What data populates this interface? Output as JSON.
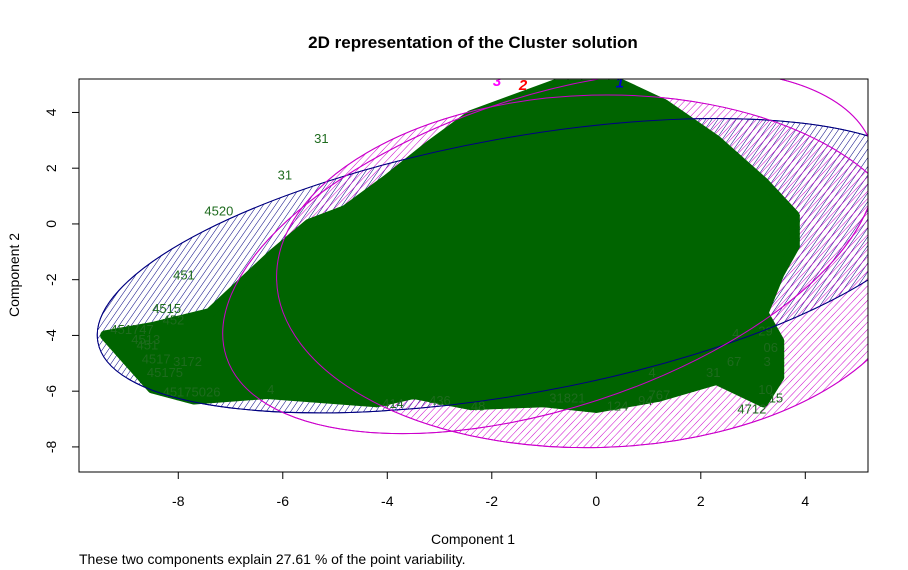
{
  "chart_data": {
    "type": "scatter",
    "title": "2D representation of the Cluster solution",
    "xlabel": "Component 1",
    "ylabel": "Component 2",
    "xlim": [
      -9.9,
      5.2
    ],
    "ylim": [
      -8.9,
      5.2
    ],
    "xticks": [
      -8,
      -6,
      -4,
      -2,
      0,
      2,
      4
    ],
    "yticks": [
      4,
      2,
      0,
      -2,
      -4,
      -6,
      -8
    ],
    "grid": false,
    "caption": "These two components explain 27.61 % of the point variability.",
    "colors": {
      "cluster_1": "#0000cc",
      "cluster_2": "#ff0000",
      "cluster_3": "#ff00ff",
      "points": "#006400",
      "point_labels": "#1e6b1e",
      "ellipse_1": "#000080",
      "ellipse_3": "#cc00cc"
    },
    "clusters": [
      {
        "label": "1",
        "center": [
          0.45,
          4.9
        ],
        "color": "#0000cc",
        "ellipse": {
          "cx": -1.5,
          "cy": -1.5,
          "rx": 8.17,
          "ry": 4.59,
          "angle_deg": 10.3
        }
      },
      {
        "label": "2",
        "center": [
          -1.4,
          4.8
        ],
        "color": "#ff0000",
        "ellipse": {
          "cx": -0.9,
          "cy": -1.0,
          "rx": 6.5,
          "ry": 5.6,
          "angle_deg": 18
        }
      },
      {
        "label": "3",
        "center": [
          -1.9,
          4.95
        ],
        "color": "#ff00ff",
        "ellipse": {
          "cx": 0.0,
          "cy": -1.7,
          "rx": 6.12,
          "ry": 6.32,
          "angle_deg": 1.5
        }
      }
    ],
    "point_cloud_outline": [
      [
        -0.8,
        5.0
      ],
      [
        0.5,
        5.0
      ],
      [
        1.3,
        4.3
      ],
      [
        2.3,
        3.0
      ],
      [
        3.2,
        1.5
      ],
      [
        3.8,
        0.3
      ],
      [
        3.8,
        -0.8
      ],
      [
        3.5,
        -1.8
      ],
      [
        3.2,
        -3.2
      ],
      [
        3.5,
        -4.2
      ],
      [
        3.5,
        -5.5
      ],
      [
        3.2,
        -6.4
      ],
      [
        2.3,
        -5.6
      ],
      [
        1.2,
        -6.2
      ],
      [
        0.0,
        -6.6
      ],
      [
        -1.0,
        -6.4
      ],
      [
        -2.4,
        -6.5
      ],
      [
        -3.5,
        -6.1
      ],
      [
        -4.2,
        -6.4
      ],
      [
        -6.3,
        -6.1
      ],
      [
        -7.7,
        -6.3
      ],
      [
        -8.5,
        -5.9
      ],
      [
        -9.4,
        -4.0
      ],
      [
        -8.5,
        -3.7
      ],
      [
        -7.4,
        -3.2
      ],
      [
        -6.2,
        -1.1
      ],
      [
        -5.5,
        0.0
      ],
      [
        -4.8,
        0.5
      ],
      [
        -4.0,
        1.6
      ],
      [
        -3.2,
        2.8
      ],
      [
        -2.4,
        3.9
      ]
    ],
    "point_labels": [
      {
        "x": -9.3,
        "y": -3.95,
        "text": "451747"
      },
      {
        "x": -8.8,
        "y": -4.5,
        "text": "451"
      },
      {
        "x": -8.7,
        "y": -5.0,
        "text": "4517"
      },
      {
        "x": -8.6,
        "y": -5.5,
        "text": "45175"
      },
      {
        "x": -8.9,
        "y": -4.3,
        "text": "4513"
      },
      {
        "x": -8.3,
        "y": -6.2,
        "text": "45175026"
      },
      {
        "x": -8.1,
        "y": -5.1,
        "text": "3172"
      },
      {
        "x": -8.5,
        "y": -3.2,
        "text": "4515"
      },
      {
        "x": -8.3,
        "y": -3.6,
        "text": "452"
      },
      {
        "x": -8.1,
        "y": -2.0,
        "text": "451"
      },
      {
        "x": -7.5,
        "y": 0.3,
        "text": "4520"
      },
      {
        "x": -6.1,
        "y": 1.6,
        "text": "31"
      },
      {
        "x": -5.4,
        "y": 2.9,
        "text": "31"
      },
      {
        "x": -6.3,
        "y": -6.1,
        "text": "4"
      },
      {
        "x": -4.1,
        "y": -6.6,
        "text": "414"
      },
      {
        "x": -3.2,
        "y": -6.5,
        "text": "436"
      },
      {
        "x": -2.4,
        "y": -6.7,
        "text": "48"
      },
      {
        "x": -0.9,
        "y": -6.4,
        "text": "31821"
      },
      {
        "x": 0.2,
        "y": -6.7,
        "text": "124"
      },
      {
        "x": 0.8,
        "y": -6.5,
        "text": "94"
      },
      {
        "x": 1.0,
        "y": -6.3,
        "text": "767"
      },
      {
        "x": 1.0,
        "y": -5.5,
        "text": "4"
      },
      {
        "x": 2.1,
        "y": -5.5,
        "text": "31"
      },
      {
        "x": 2.5,
        "y": -5.1,
        "text": "67"
      },
      {
        "x": 2.6,
        "y": -4.1,
        "text": "4"
      },
      {
        "x": 3.1,
        "y": -4.0,
        "text": "29"
      },
      {
        "x": 3.2,
        "y": -4.6,
        "text": "06"
      },
      {
        "x": 3.2,
        "y": -5.1,
        "text": "3"
      },
      {
        "x": 2.7,
        "y": -6.8,
        "text": "4712"
      },
      {
        "x": 3.3,
        "y": -6.4,
        "text": "15"
      },
      {
        "x": 3.1,
        "y": -6.1,
        "text": "10"
      }
    ]
  }
}
